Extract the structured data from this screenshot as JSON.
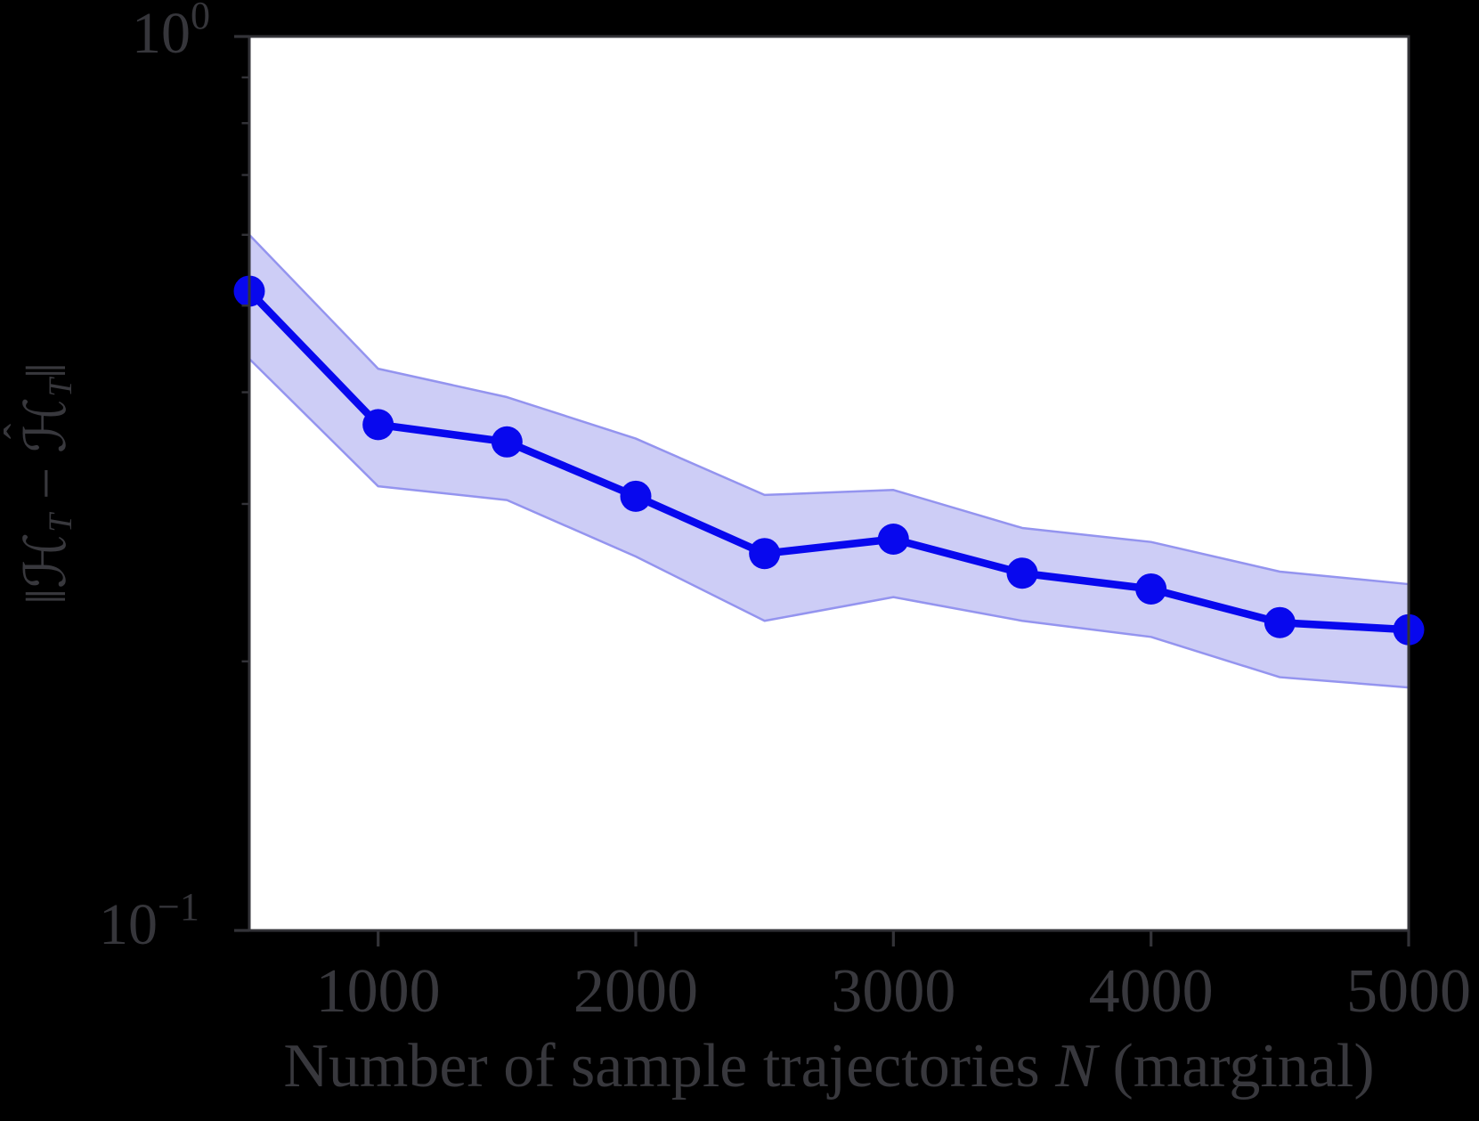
{
  "figure": {
    "background": "#000000",
    "plot_background": "#ffffff",
    "axis_color": "#333338",
    "text_color": "#38383d"
  },
  "chart_data": {
    "type": "line",
    "title": "",
    "xlabel": "Number of sample trajectories N (marginal)",
    "xlabel_parts": {
      "prefix": "Number of sample trajectories ",
      "var": "N",
      "suffix": " (marginal)"
    },
    "ylabel": "||H_T - H_T_hat||",
    "ylabel_parts": {
      "open": "‖ℋ",
      "sub1": "T",
      "minus": " − ",
      "hat_base": "ℋ",
      "hat": "ˆ",
      "sub2": "T",
      "close": "‖"
    },
    "x": [
      500,
      1000,
      1500,
      2000,
      2500,
      3000,
      3500,
      4000,
      4500,
      5000
    ],
    "series": [
      {
        "name": "mean",
        "values": [
          0.519,
          0.368,
          0.352,
          0.306,
          0.264,
          0.274,
          0.251,
          0.241,
          0.221,
          0.217
        ]
      }
    ],
    "band": {
      "upper": [
        0.6,
        0.425,
        0.395,
        0.355,
        0.307,
        0.311,
        0.282,
        0.272,
        0.252,
        0.244
      ],
      "lower": [
        0.436,
        0.314,
        0.303,
        0.262,
        0.222,
        0.236,
        0.222,
        0.213,
        0.192,
        0.187
      ]
    },
    "xlim": [
      500,
      5000
    ],
    "ylim": [
      0.1,
      1.0
    ],
    "yscale": "log",
    "grid": false,
    "legend": false,
    "x_ticks": [
      {
        "value": 1000,
        "label": "1000"
      },
      {
        "value": 2000,
        "label": "2000"
      },
      {
        "value": 3000,
        "label": "3000"
      },
      {
        "value": 4000,
        "label": "4000"
      },
      {
        "value": 5000,
        "label": "5000"
      }
    ],
    "y_major_ticks": [
      {
        "value": 1.0,
        "base": "10",
        "exp": "0"
      },
      {
        "value": 0.1,
        "base": "10",
        "exp": "−1"
      }
    ],
    "y_minor_ticks": [
      0.9,
      0.8,
      0.7,
      0.6,
      0.5,
      0.4,
      0.3,
      0.2
    ],
    "line_color": "#0808ee",
    "marker_color": "#0808ee",
    "band_fill": "#cdcdf6",
    "band_edge": "#9494ef"
  }
}
